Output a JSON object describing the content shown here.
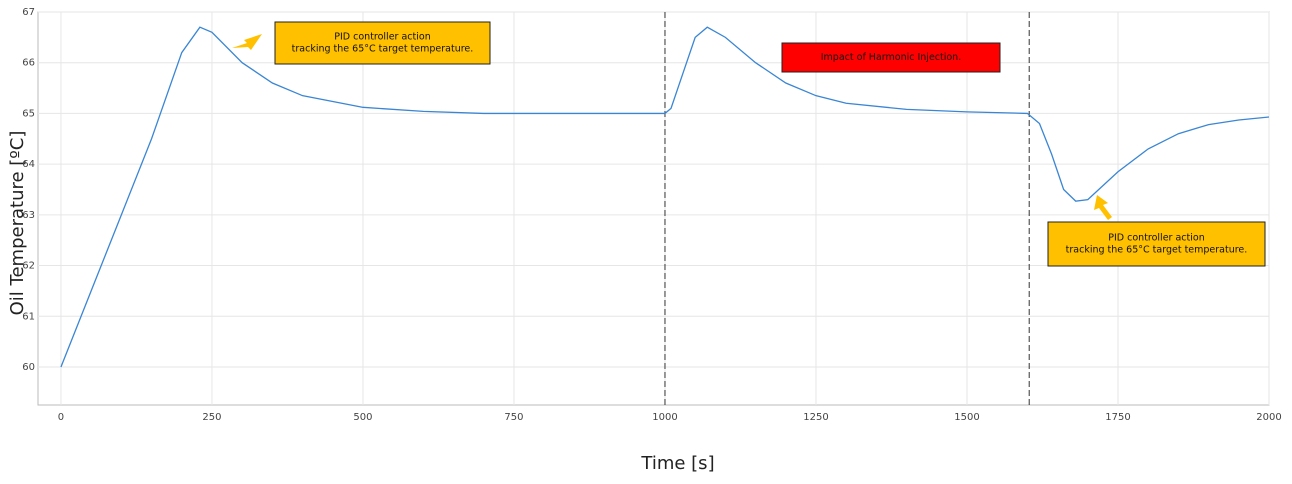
{
  "chart_data": {
    "type": "line",
    "x_label": "Time [s]",
    "y_label": "Oil Temperature [ºC]",
    "xlim": [
      -38,
      2000
    ],
    "ylim": [
      59.25,
      67
    ],
    "xticks": [
      0,
      250,
      500,
      750,
      1000,
      1250,
      1500,
      1750,
      2000
    ],
    "yticks": [
      60,
      61,
      62,
      63,
      64,
      65,
      66,
      67
    ],
    "grid": true,
    "vlines": [
      1000,
      1603
    ],
    "series": [
      {
        "color": "#3a86d4",
        "x": [
          0,
          50,
          100,
          150,
          200,
          230,
          250,
          300,
          350,
          400,
          500,
          600,
          700,
          800,
          900,
          1000,
          1010,
          1030,
          1050,
          1070,
          1100,
          1150,
          1200,
          1250,
          1300,
          1400,
          1500,
          1600,
          1620,
          1640,
          1660,
          1680,
          1700,
          1750,
          1800,
          1850,
          1900,
          1950,
          2000
        ],
        "values": [
          60.0,
          61.5,
          63.0,
          64.5,
          66.2,
          66.7,
          66.6,
          66.0,
          65.6,
          65.35,
          65.12,
          65.04,
          65.0,
          65.0,
          65.0,
          65.0,
          65.1,
          65.8,
          66.5,
          66.7,
          66.5,
          66.0,
          65.6,
          65.35,
          65.2,
          65.08,
          65.03,
          65.0,
          64.8,
          64.2,
          63.5,
          63.27,
          63.3,
          63.85,
          64.3,
          64.6,
          64.78,
          64.87,
          64.93
        ]
      }
    ],
    "annotations": [
      {
        "lines": [
          "PID controller action",
          "tracking the 65°C target temperature."
        ],
        "color": "#ffc000"
      },
      {
        "lines": [
          "Impact of Harmonic Injection."
        ],
        "color": "#ff0000"
      },
      {
        "lines": [
          "PID controller action",
          "tracking the 65°C target temperature."
        ],
        "color": "#ffc000"
      }
    ]
  }
}
